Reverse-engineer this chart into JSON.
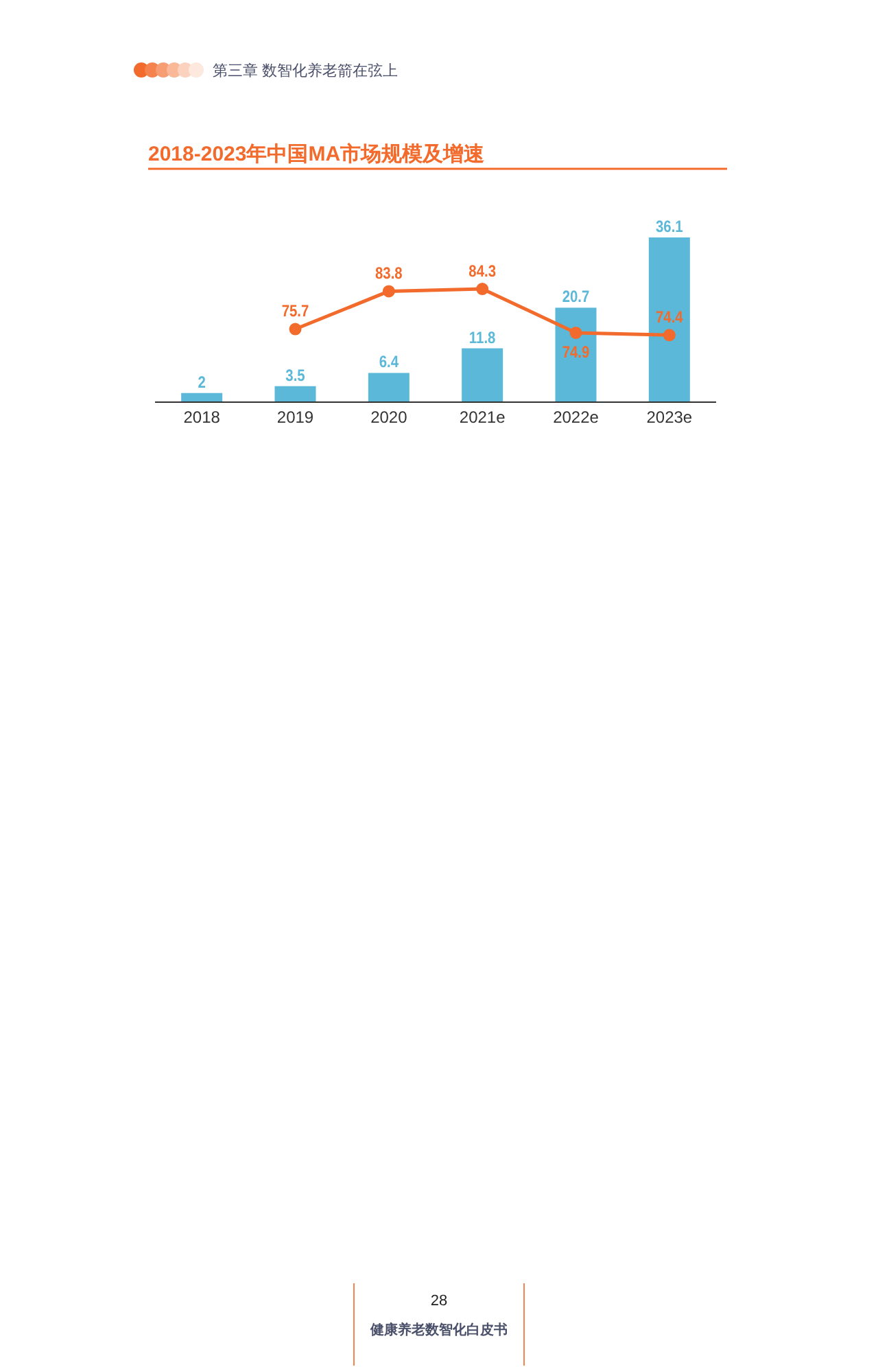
{
  "chart_data": {
    "type": "bar",
    "title": "2018-2023年中国MA市场规模及增速",
    "categories": [
      "2018",
      "2019",
      "2020",
      "2021e",
      "2022e",
      "2023e"
    ],
    "series": [
      {
        "color": "#5bb8d9",
        "values": [
          2,
          3.5,
          6.4,
          11.8,
          20.7,
          36.1
        ]
      },
      {
        "type": "line",
        "axis": "y2",
        "color": "#f26b2c",
        "values": [
          null,
          75.7,
          83.8,
          84.3,
          74.9,
          74.4
        ]
      }
    ],
    "tick_labels": "x",
    "data_labels": true,
    "marker": "circle",
    "annotations": [
      "第三章 数智化养老箭在弦上",
      "28",
      "健康养老数智化白皮书"
    ]
  }
}
